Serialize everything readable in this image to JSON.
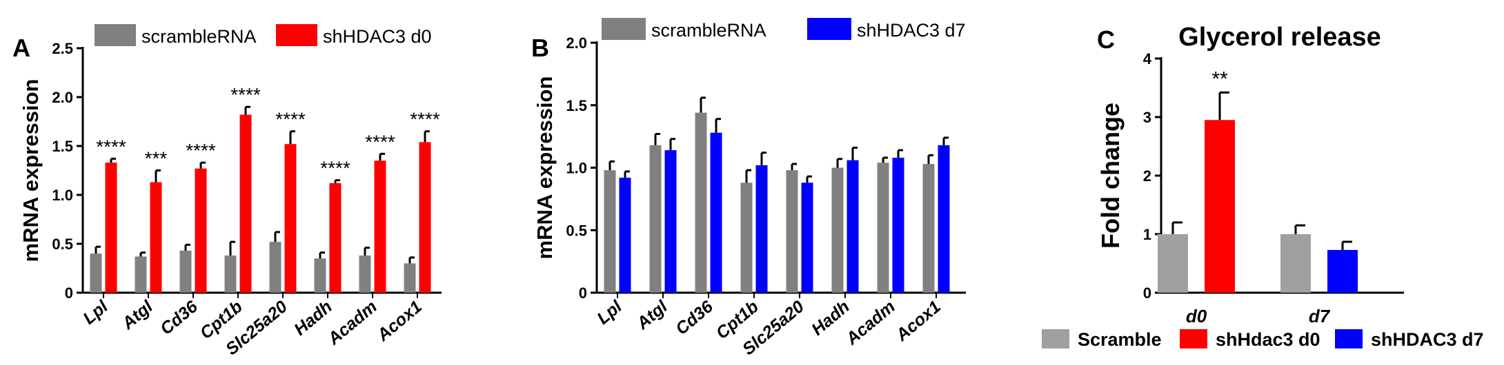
{
  "chart_data": [
    {
      "panel": "A",
      "type": "bar",
      "title": "",
      "xlabel": "",
      "ylabel": "mRNA expression",
      "ylim": [
        0,
        2.5
      ],
      "yticks": [
        "0",
        "0.5",
        "1.0",
        "1.5",
        "2.0",
        "2.5"
      ],
      "categories": [
        "Lpl",
        "Atgl",
        "Cd36",
        "Cpt1b",
        "Slc25a20",
        "Hadh",
        "Acadm",
        "Acox1"
      ],
      "series": [
        {
          "name": "scrambleRNA",
          "color": "#808080",
          "values": [
            0.4,
            0.37,
            0.43,
            0.38,
            0.52,
            0.35,
            0.38,
            0.3
          ],
          "errors": [
            0.07,
            0.04,
            0.06,
            0.14,
            0.1,
            0.06,
            0.08,
            0.06
          ]
        },
        {
          "name": "shHDAC3 d0",
          "color": "#ff0000",
          "values": [
            1.33,
            1.13,
            1.27,
            1.82,
            1.52,
            1.12,
            1.35,
            1.54
          ],
          "errors": [
            0.04,
            0.12,
            0.06,
            0.08,
            0.13,
            0.03,
            0.07,
            0.11
          ]
        }
      ],
      "annotations": [
        "****",
        "***",
        "****",
        "****",
        "****",
        "****",
        "****",
        "****"
      ]
    },
    {
      "panel": "B",
      "type": "bar",
      "title": "",
      "xlabel": "",
      "ylabel": "mRNA expression",
      "ylim": [
        0,
        2.0
      ],
      "yticks": [
        "0",
        "0.5",
        "1.0",
        "1.5",
        "2.0"
      ],
      "categories": [
        "Lpl",
        "Atgl",
        "Cd36",
        "Cpt1b",
        "Slc25a20",
        "Hadh",
        "Acadm",
        "Acox1"
      ],
      "series": [
        {
          "name": "scrambleRNA",
          "color": "#808080",
          "values": [
            0.98,
            1.18,
            1.44,
            0.88,
            0.98,
            1.0,
            1.04,
            1.03
          ],
          "errors": [
            0.07,
            0.09,
            0.12,
            0.1,
            0.05,
            0.07,
            0.04,
            0.07
          ]
        },
        {
          "name": "shHDAC3 d7",
          "color": "#0000ff",
          "values": [
            0.92,
            1.14,
            1.28,
            1.02,
            0.88,
            1.06,
            1.08,
            1.18
          ],
          "errors": [
            0.05,
            0.09,
            0.11,
            0.1,
            0.05,
            0.1,
            0.06,
            0.06
          ]
        }
      ],
      "annotations": []
    },
    {
      "panel": "C",
      "type": "bar",
      "title": "Glycerol release",
      "xlabel": "",
      "ylabel": "Fold change",
      "ylim": [
        0,
        4
      ],
      "yticks": [
        "0",
        "1",
        "2",
        "3",
        "4"
      ],
      "categories": [
        "d0",
        "d7"
      ],
      "series": [
        {
          "name": "Scramble",
          "color": "#a0a0a0",
          "values": [
            1.0,
            1.0
          ],
          "errors": [
            0.2,
            0.15
          ]
        },
        {
          "name": "shHdac3 d0",
          "color": "#ff0000",
          "values": [
            2.95,
            null
          ],
          "errors": [
            0.47,
            null
          ]
        },
        {
          "name": "shHDAC3 d7",
          "color": "#0000ff",
          "values": [
            null,
            0.73
          ],
          "errors": [
            null,
            0.14
          ]
        }
      ],
      "annotations": [
        "**"
      ]
    }
  ]
}
